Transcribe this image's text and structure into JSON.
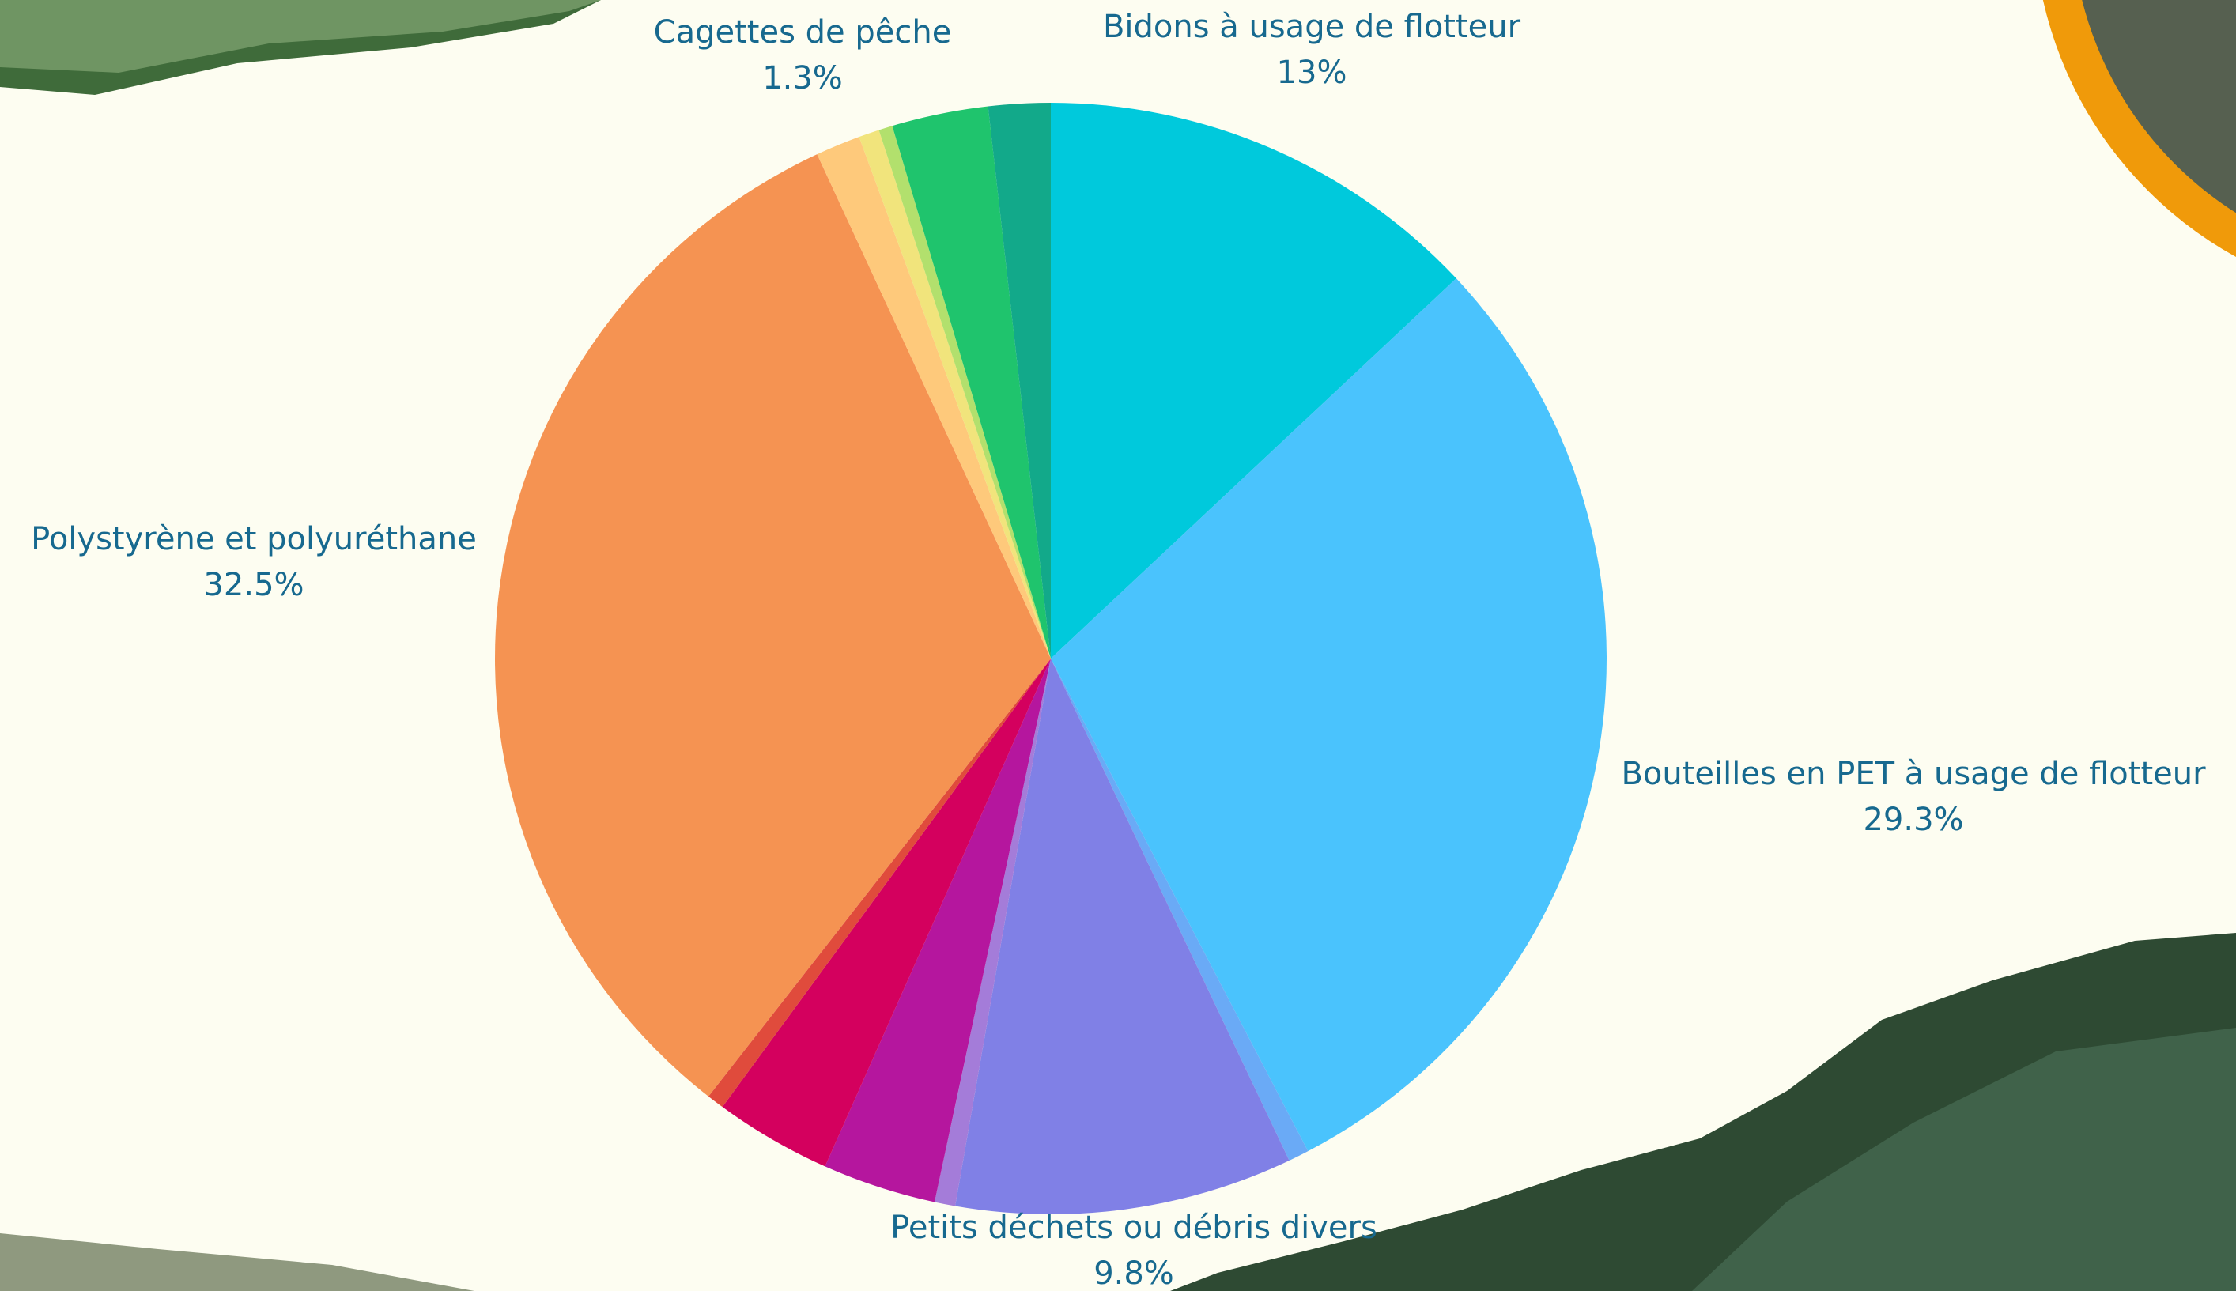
{
  "chart_data": {
    "type": "pie",
    "categories": [
      "Bidons à usage de flotteur",
      "Bouteilles en PET à usage de flotteur",
      null,
      "Petits déchets ou débris divers",
      null,
      null,
      null,
      null,
      "Polystyrène et polyuréthane",
      "Cagettes de pêche",
      null,
      null,
      null,
      null
    ],
    "values": [
      13,
      29.3,
      0.6,
      9.8,
      0.6,
      3.3,
      3.4,
      0.5,
      32.5,
      1.3,
      0.6,
      0.4,
      2.8,
      1.8
    ],
    "value_labels": [
      "13%",
      "29.3%",
      null,
      "9.8%",
      null,
      null,
      null,
      null,
      "32.5%",
      "1.3%",
      null,
      null,
      null,
      null
    ],
    "colors": [
      "#00c9dc",
      "#4ac3fd",
      "#6aaaf6",
      "#8080e6",
      "#a47cd9",
      "#b5169e",
      "#d4005e",
      "#e04b3c",
      "#f59352",
      "#fec97b",
      "#f1e47c",
      "#b2e06d",
      "#1fc46d",
      "#12a98a"
    ]
  }
}
